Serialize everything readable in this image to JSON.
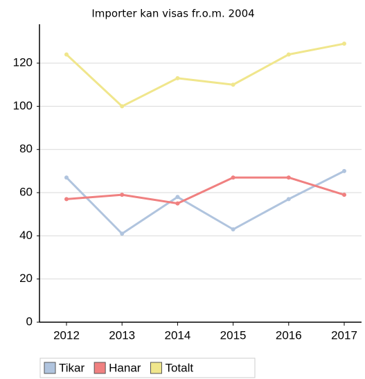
{
  "chart_data": {
    "type": "line",
    "title": "Importer kan visas fr.o.m. 2004",
    "categories": [
      "2012",
      "2013",
      "2014",
      "2015",
      "2016",
      "2017"
    ],
    "series": [
      {
        "name": "Tikar",
        "color": "#b0c4de",
        "values": [
          67,
          41,
          58,
          43,
          57,
          70
        ]
      },
      {
        "name": "Hanar",
        "color": "#f08080",
        "values": [
          57,
          59,
          55,
          67,
          67,
          59
        ]
      },
      {
        "name": "Totalt",
        "color": "#f0e68c",
        "values": [
          124,
          100,
          113,
          110,
          124,
          129
        ]
      }
    ],
    "ylim": [
      0,
      138
    ],
    "yticks": [
      0,
      20,
      40,
      60,
      80,
      100,
      120
    ],
    "grid": true,
    "legend": "bottom"
  }
}
